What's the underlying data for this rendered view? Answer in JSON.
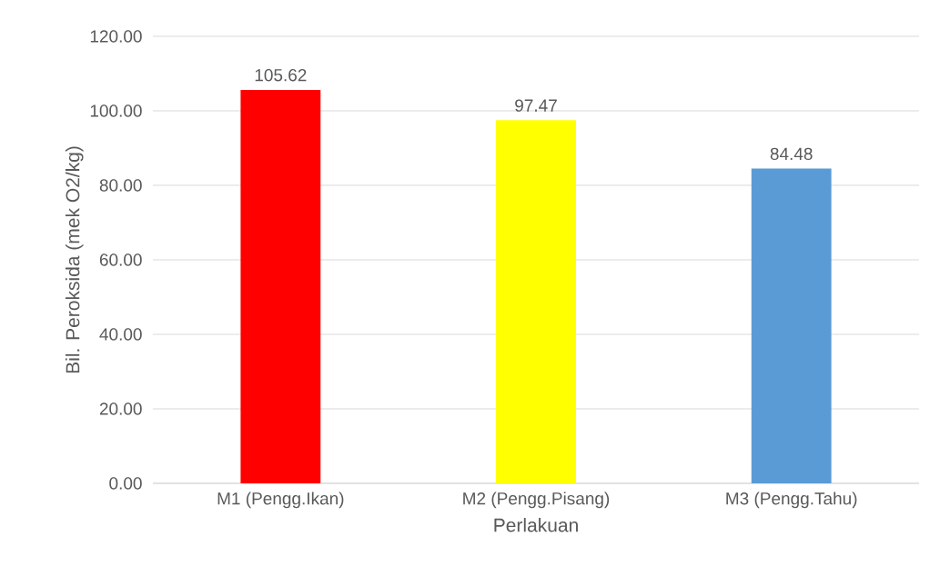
{
  "chart_data": {
    "type": "bar",
    "xlabel": "Perlakuan",
    "ylabel": "Bil. Peroksida (mek O2/kg)",
    "categories": [
      "M1 (Pengg.Ikan)",
      "M2 (Pengg.Pisang)",
      "M3 (Pengg.Tahu)"
    ],
    "values": [
      105.62,
      97.47,
      84.48
    ],
    "colors": [
      "#ff0000",
      "#ffff00",
      "#5b9bd5"
    ],
    "ylim": [
      0,
      120
    ],
    "yticks": [
      {
        "value": 0,
        "label": "0.00"
      },
      {
        "value": 20,
        "label": "20.00"
      },
      {
        "value": 40,
        "label": "40.00"
      },
      {
        "value": 60,
        "label": "60.00"
      },
      {
        "value": 80,
        "label": "80.00"
      },
      {
        "value": 100,
        "label": "100.00"
      },
      {
        "value": 120,
        "label": "120.00"
      }
    ],
    "grid": "y",
    "data_labels": true
  }
}
